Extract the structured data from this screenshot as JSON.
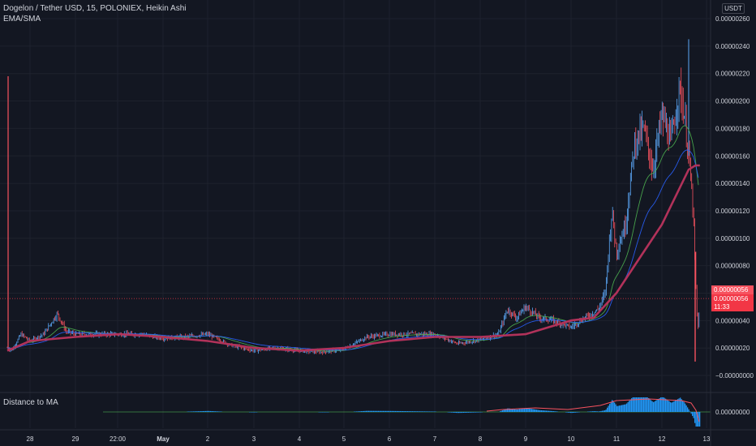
{
  "legend": {
    "title": "Dogelon / Tether USD, 15, POLONIEX, Heikin Ashi",
    "indicator": "EMA/SMA",
    "sub_indicator": "Distance to MA"
  },
  "price_scale": {
    "currency": "USDT",
    "labels": [
      "0.00000260",
      "0.00000240",
      "0.00000220",
      "0.00000200",
      "0.00000180",
      "0.00000160",
      "0.00000140",
      "0.00000120",
      "0.00000100",
      "0.00000080",
      "0.00000060",
      "0.00000040",
      "0.00000020",
      "−0.00000000"
    ],
    "last_price_a": "0.00000056",
    "last_price_b": "0.00000056",
    "countdown": "11:33"
  },
  "sub_scale": {
    "labels": [
      "0.00000000"
    ]
  },
  "time_axis": {
    "labels": [
      "28",
      "29",
      "22:00",
      "May",
      "2",
      "3",
      "4",
      "5",
      "6",
      "7",
      "8",
      "9",
      "10",
      "11",
      "12",
      "13"
    ]
  },
  "colors": {
    "background": "#131722",
    "grid": "#1e222d",
    "up": "#5ba7f7",
    "down": "#f7525f",
    "slow_ma": "#b2325a",
    "fast_ma_green": "#4caf50",
    "fast_ma_blue": "#2962ff",
    "histogram": "#2196f3",
    "last_price": "#f23645"
  },
  "chart_data": {
    "type": "candlestick",
    "title": "Dogelon / Tether USD, 15, POLONIEX, Heikin Ashi",
    "ylabel": "USDT",
    "ylim": [
      -3e-08,
      2.65e-06
    ],
    "x_ticks": [
      "28",
      "29",
      "22:00",
      "May",
      "2",
      "3",
      "4",
      "5",
      "6",
      "7",
      "8",
      "9",
      "10",
      "11",
      "12",
      "13"
    ],
    "x_range_days": [
      27.55,
      13.1
    ],
    "approx_close": {
      "x_day": [
        27.5,
        27.6,
        27.8,
        28.0,
        28.3,
        28.6,
        28.8,
        29.0,
        29.3,
        29.6,
        30.0,
        30.5,
        1.0,
        1.5,
        2.0,
        2.5,
        3.0,
        3.5,
        4.0,
        4.5,
        5.0,
        5.5,
        6.0,
        6.5,
        7.0,
        7.5,
        8.0,
        8.4,
        8.6,
        8.8,
        9.0,
        9.3,
        9.6,
        10.0,
        10.3,
        10.6,
        10.75,
        10.9,
        11.0,
        11.2,
        11.4,
        11.6,
        11.8,
        12.0,
        12.2,
        12.4,
        12.5,
        12.6,
        12.7,
        12.8,
        12.85
      ],
      "value": [
        2e-07,
        1.8e-07,
        3e-07,
        2.5e-07,
        3e-07,
        4.5e-07,
        3.2e-07,
        3e-07,
        3e-07,
        3e-07,
        3e-07,
        3e-07,
        2.7e-07,
        2.8e-07,
        3e-07,
        2.2e-07,
        1.8e-07,
        2e-07,
        1.8e-07,
        1.7e-07,
        1.9e-07,
        2.8e-07,
        3e-07,
        3e-07,
        3e-07,
        2.3e-07,
        2.6e-07,
        3e-07,
        4.8e-07,
        4.2e-07,
        5e-07,
        4.2e-07,
        4e-07,
        3.5e-07,
        4.2e-07,
        4.8e-07,
        6e-07,
        1.2e-06,
        9e-07,
        1.1e-06,
        1.7e-06,
        1.8e-06,
        1.5e-06,
        1.9e-06,
        1.7e-06,
        2.1e-06,
        1.9e-06,
        1.6e-06,
        1.2e-06,
        3e-07,
        5.6e-07
      ]
    },
    "approx_slow_ma": {
      "x_day": [
        27.5,
        28.0,
        29.0,
        30.0,
        1.0,
        2.0,
        3.0,
        4.0,
        5.0,
        6.0,
        7.0,
        8.0,
        9.0,
        10.0,
        10.5,
        11.0,
        11.5,
        12.0,
        12.3,
        12.6,
        12.75,
        12.85
      ],
      "value": [
        1.8e-07,
        2.5e-07,
        2.8e-07,
        3e-07,
        2.8e-07,
        2.5e-07,
        2e-07,
        1.8e-07,
        2e-07,
        2.5e-07,
        2.8e-07,
        2.8e-07,
        3e-07,
        4e-07,
        4.2e-07,
        6e-07,
        8.5e-07,
        1.1e-06,
        1.3e-06,
        1.5e-06,
        1.53e-06,
        1.53e-06
      ]
    }
  }
}
